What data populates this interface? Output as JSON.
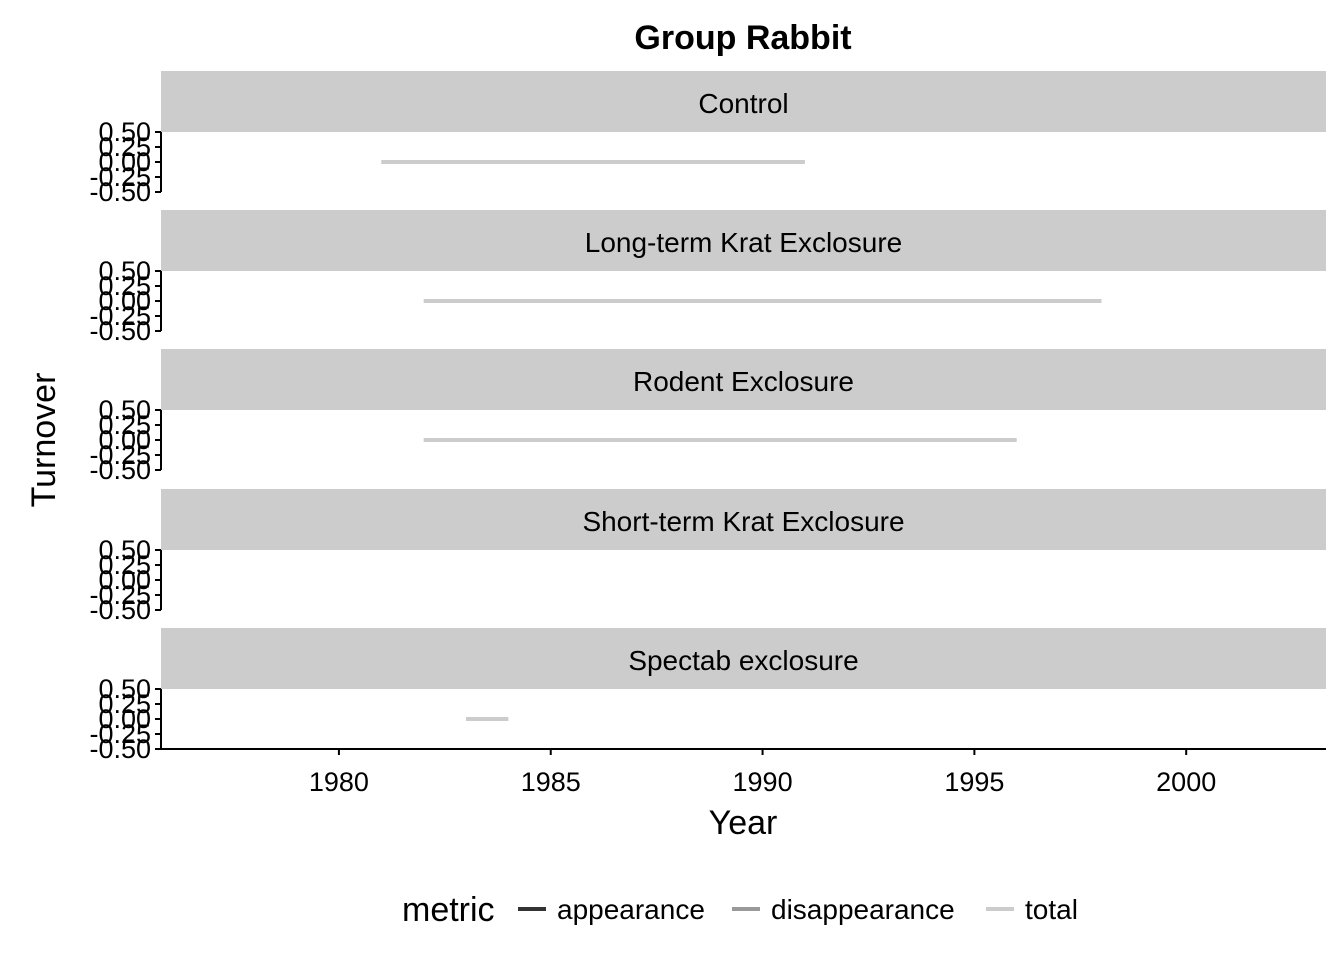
{
  "chart_data": {
    "type": "line",
    "title": "Group Rabbit",
    "xlabel": "Year",
    "ylabel": "Turnover",
    "xlim": [
      1975.8,
      2003.3
    ],
    "ylim": [
      -0.5,
      0.5
    ],
    "x_ticks": [
      1980,
      1985,
      1990,
      1995,
      2000
    ],
    "y_ticks": [
      -0.5,
      -0.25,
      0.0,
      0.25,
      0.5
    ],
    "y_tick_labels": [
      "-0.50",
      "-0.25",
      "0.00",
      "0.25",
      "0.50"
    ],
    "grid": false,
    "legend": {
      "title": "metric",
      "position": "bottom",
      "entries": [
        {
          "label": "appearance",
          "color": "#333333"
        },
        {
          "label": "disappearance",
          "color": "#999999"
        },
        {
          "label": "total",
          "color": "#cccccc"
        }
      ]
    },
    "facets": [
      {
        "label": "Control",
        "series": [
          {
            "metric": "total",
            "x": [
              1981,
              1991
            ],
            "y": [
              0,
              0
            ]
          }
        ]
      },
      {
        "label": "Long-term Krat Exclosure",
        "series": [
          {
            "metric": "total",
            "x": [
              1982,
              1998
            ],
            "y": [
              0,
              0
            ]
          }
        ]
      },
      {
        "label": "Rodent Exclosure",
        "series": [
          {
            "metric": "total",
            "x": [
              1982,
              1996
            ],
            "y": [
              0,
              0
            ]
          }
        ]
      },
      {
        "label": "Short-term Krat Exclosure",
        "series": []
      },
      {
        "label": "Spectab exclosure",
        "series": [
          {
            "metric": "total",
            "x": [
              1983,
              1984
            ],
            "y": [
              0,
              0
            ]
          }
        ]
      }
    ]
  }
}
